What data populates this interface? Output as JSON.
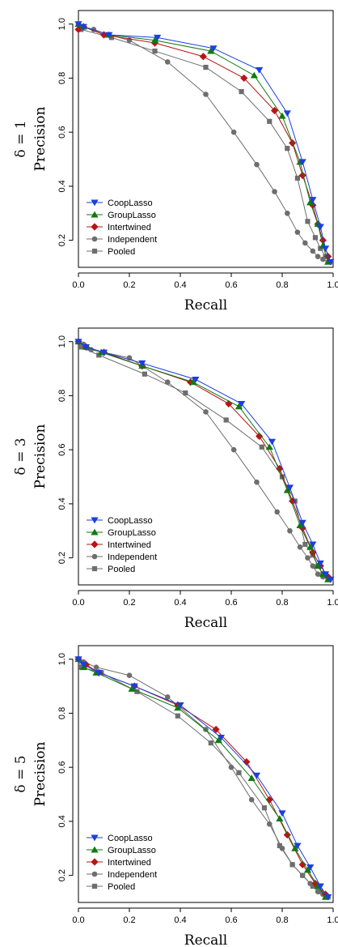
{
  "figure": {
    "x_axis_label": "Recall",
    "y_axis_label": "Precision",
    "x_ticks": [
      "0.0",
      "0.2",
      "0.4",
      "0.6",
      "0.8",
      "1.0"
    ],
    "y_ticks": [
      "0.2",
      "0.4",
      "0.6",
      "0.8",
      "1.0"
    ]
  },
  "legend": {
    "placement": "bottom-left",
    "entries": [
      {
        "name": "CoopLasso",
        "color": "#1a3fe0",
        "marker": "triangle-down"
      },
      {
        "name": "GroupLasso",
        "color": "#0f7a0f",
        "marker": "triangle-up"
      },
      {
        "name": "Intertwined",
        "color": "#b81414",
        "marker": "diamond"
      },
      {
        "name": "Independent",
        "color": "#6e6e6e",
        "marker": "circle"
      },
      {
        "name": "Pooled",
        "color": "#6e6e6e",
        "marker": "square"
      }
    ]
  },
  "chart_data": [
    {
      "type": "line",
      "panel_label": "δ = 1",
      "xlabel": "Recall",
      "ylabel": "Precision",
      "xlim": [
        0,
        1
      ],
      "ylim": [
        0.1,
        1.05
      ],
      "x_ticks": [
        0.0,
        0.2,
        0.4,
        0.6,
        0.8,
        1.0
      ],
      "y_ticks": [
        0.2,
        0.4,
        0.6,
        0.8,
        1.0
      ],
      "grid": false,
      "legend_position": "bottom-left",
      "series": [
        {
          "name": "CoopLasso",
          "x": [
            0.0,
            0.02,
            0.12,
            0.31,
            0.53,
            0.71,
            0.82,
            0.88,
            0.92,
            0.95,
            0.97,
            0.99
          ],
          "y": [
            1.0,
            0.99,
            0.96,
            0.95,
            0.91,
            0.83,
            0.67,
            0.49,
            0.35,
            0.25,
            0.17,
            0.12
          ]
        },
        {
          "name": "GroupLasso",
          "x": [
            0.0,
            0.02,
            0.12,
            0.3,
            0.52,
            0.69,
            0.8,
            0.87,
            0.91,
            0.94,
            0.96,
            0.98
          ],
          "y": [
            1.0,
            0.99,
            0.96,
            0.94,
            0.9,
            0.81,
            0.66,
            0.49,
            0.34,
            0.26,
            0.18,
            0.12
          ]
        },
        {
          "name": "Intertwined",
          "x": [
            0.0,
            0.02,
            0.1,
            0.3,
            0.49,
            0.65,
            0.77,
            0.84,
            0.88,
            0.92,
            0.94,
            0.96,
            0.98
          ],
          "y": [
            0.98,
            0.99,
            0.96,
            0.93,
            0.88,
            0.8,
            0.68,
            0.56,
            0.44,
            0.33,
            0.26,
            0.2,
            0.14
          ]
        },
        {
          "name": "Independent",
          "x": [
            0.0,
            0.02,
            0.06,
            0.12,
            0.2,
            0.35,
            0.5,
            0.61,
            0.7,
            0.77,
            0.82,
            0.86,
            0.89,
            0.92,
            0.94,
            0.96,
            0.98
          ],
          "y": [
            1.0,
            0.99,
            0.98,
            0.96,
            0.94,
            0.86,
            0.74,
            0.6,
            0.48,
            0.38,
            0.3,
            0.23,
            0.19,
            0.16,
            0.14,
            0.13,
            0.12
          ]
        },
        {
          "name": "Pooled",
          "x": [
            0.0,
            0.01,
            0.13,
            0.3,
            0.5,
            0.64,
            0.75,
            0.82,
            0.86,
            0.9,
            0.93,
            0.95,
            0.97,
            0.99
          ],
          "y": [
            1.0,
            0.98,
            0.95,
            0.9,
            0.84,
            0.75,
            0.64,
            0.54,
            0.43,
            0.27,
            0.21,
            0.17,
            0.14,
            0.12
          ]
        }
      ]
    },
    {
      "type": "line",
      "panel_label": "δ = 3",
      "xlabel": "Recall",
      "ylabel": "Precision",
      "xlim": [
        0,
        1
      ],
      "ylim": [
        0.1,
        1.05
      ],
      "x_ticks": [
        0.0,
        0.2,
        0.4,
        0.6,
        0.8,
        1.0
      ],
      "y_ticks": [
        0.2,
        0.4,
        0.6,
        0.8,
        1.0
      ],
      "grid": false,
      "legend_position": "bottom-left",
      "series": [
        {
          "name": "CoopLasso",
          "x": [
            0.0,
            0.03,
            0.1,
            0.25,
            0.46,
            0.64,
            0.76,
            0.83,
            0.88,
            0.92,
            0.95,
            0.97,
            0.99
          ],
          "y": [
            1.0,
            0.98,
            0.96,
            0.92,
            0.86,
            0.77,
            0.63,
            0.46,
            0.33,
            0.25,
            0.18,
            0.14,
            0.12
          ]
        },
        {
          "name": "GroupLasso",
          "x": [
            0.0,
            0.03,
            0.09,
            0.25,
            0.45,
            0.63,
            0.75,
            0.82,
            0.87,
            0.91,
            0.94,
            0.96,
            0.98
          ],
          "y": [
            1.0,
            0.98,
            0.96,
            0.91,
            0.85,
            0.76,
            0.61,
            0.45,
            0.32,
            0.24,
            0.17,
            0.14,
            0.12
          ]
        },
        {
          "name": "Intertwined",
          "x": [
            0.0,
            0.03,
            0.1,
            0.25,
            0.44,
            0.59,
            0.71,
            0.79,
            0.84,
            0.88,
            0.92,
            0.95,
            0.98
          ],
          "y": [
            1.0,
            0.98,
            0.96,
            0.91,
            0.85,
            0.77,
            0.65,
            0.53,
            0.41,
            0.31,
            0.22,
            0.17,
            0.13
          ]
        },
        {
          "name": "Independent",
          "x": [
            0.0,
            0.02,
            0.05,
            0.1,
            0.2,
            0.35,
            0.5,
            0.61,
            0.7,
            0.78,
            0.83,
            0.87,
            0.9,
            0.92,
            0.94,
            0.96,
            0.98
          ],
          "y": [
            1.0,
            0.99,
            0.97,
            0.96,
            0.94,
            0.85,
            0.74,
            0.6,
            0.48,
            0.37,
            0.3,
            0.24,
            0.2,
            0.17,
            0.14,
            0.13,
            0.12
          ]
        },
        {
          "name": "Pooled",
          "x": [
            0.0,
            0.01,
            0.08,
            0.26,
            0.42,
            0.58,
            0.72,
            0.8,
            0.85,
            0.89,
            0.92,
            0.94,
            0.96,
            0.98
          ],
          "y": [
            1.0,
            0.98,
            0.95,
            0.88,
            0.81,
            0.71,
            0.61,
            0.5,
            0.41,
            0.25,
            0.21,
            0.17,
            0.14,
            0.12
          ]
        }
      ]
    },
    {
      "type": "line",
      "panel_label": "δ = 5",
      "xlabel": "Recall",
      "ylabel": "Precision",
      "xlim": [
        0,
        1
      ],
      "ylim": [
        0.1,
        1.05
      ],
      "x_ticks": [
        0.0,
        0.2,
        0.4,
        0.6,
        0.8,
        1.0
      ],
      "y_ticks": [
        0.2,
        0.4,
        0.6,
        0.8,
        1.0
      ],
      "grid": false,
      "legend_position": "bottom-left",
      "series": [
        {
          "name": "CoopLasso",
          "x": [
            0.0,
            0.02,
            0.08,
            0.22,
            0.4,
            0.56,
            0.7,
            0.8,
            0.86,
            0.91,
            0.95,
            0.98
          ],
          "y": [
            1.0,
            0.98,
            0.95,
            0.9,
            0.83,
            0.71,
            0.57,
            0.43,
            0.31,
            0.23,
            0.16,
            0.12
          ]
        },
        {
          "name": "GroupLasso",
          "x": [
            0.0,
            0.02,
            0.07,
            0.21,
            0.39,
            0.55,
            0.68,
            0.79,
            0.85,
            0.9,
            0.94,
            0.97
          ],
          "y": [
            1.0,
            0.97,
            0.95,
            0.89,
            0.82,
            0.7,
            0.56,
            0.41,
            0.3,
            0.22,
            0.16,
            0.12
          ]
        },
        {
          "name": "Intertwined",
          "x": [
            0.0,
            0.03,
            0.08,
            0.22,
            0.39,
            0.54,
            0.66,
            0.75,
            0.82,
            0.88,
            0.93,
            0.97
          ],
          "y": [
            1.0,
            0.98,
            0.95,
            0.9,
            0.83,
            0.74,
            0.62,
            0.48,
            0.35,
            0.24,
            0.17,
            0.13
          ]
        },
        {
          "name": "Independent",
          "x": [
            0.0,
            0.02,
            0.07,
            0.2,
            0.35,
            0.5,
            0.6,
            0.68,
            0.75,
            0.8,
            0.84,
            0.88,
            0.91,
            0.94,
            0.96,
            0.98
          ],
          "y": [
            1.0,
            0.99,
            0.97,
            0.94,
            0.86,
            0.74,
            0.6,
            0.48,
            0.39,
            0.3,
            0.24,
            0.2,
            0.17,
            0.14,
            0.13,
            0.12
          ]
        },
        {
          "name": "Pooled",
          "x": [
            0.0,
            0.01,
            0.09,
            0.23,
            0.39,
            0.52,
            0.63,
            0.73,
            0.79,
            0.84,
            0.88,
            0.92,
            0.95,
            0.98
          ],
          "y": [
            1.0,
            0.97,
            0.95,
            0.88,
            0.79,
            0.69,
            0.58,
            0.45,
            0.31,
            0.24,
            0.2,
            0.16,
            0.14,
            0.12
          ]
        }
      ]
    }
  ]
}
